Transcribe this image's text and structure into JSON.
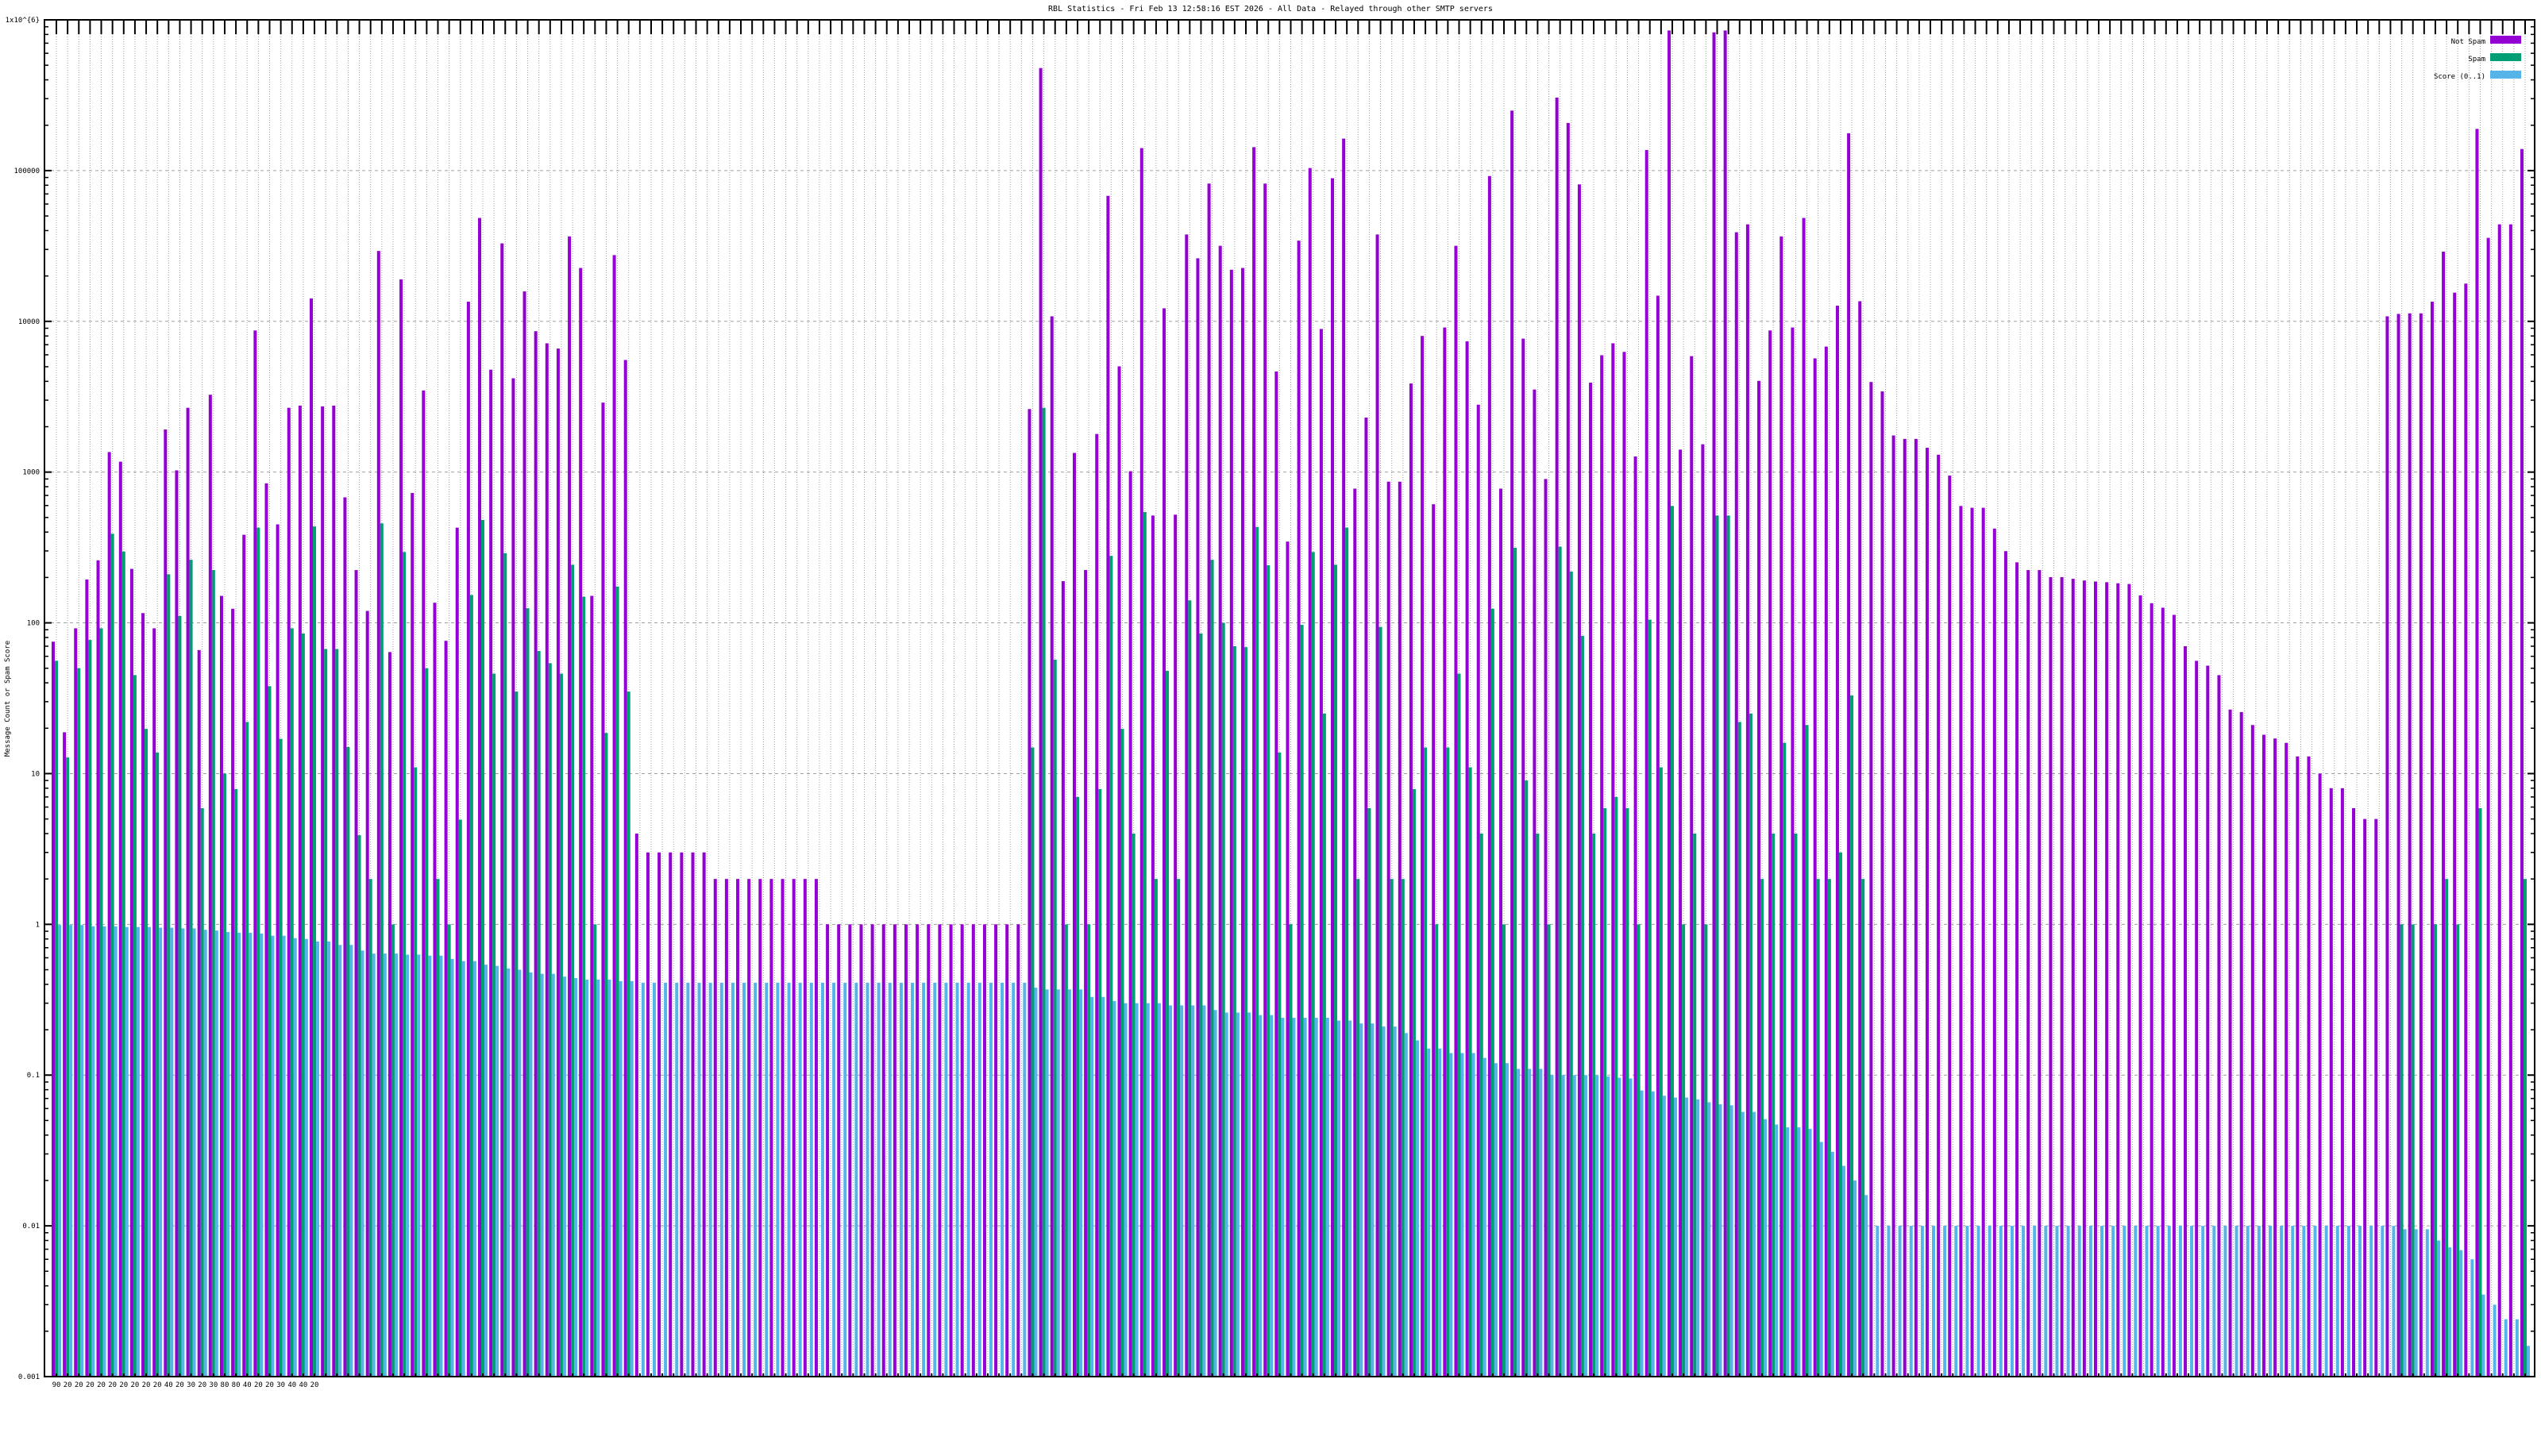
{
  "chart_data": {
    "type": "bar",
    "title": "RBL Statistics - Fri Feb 13 12:58:16 EST 2026 - All Data - Relayed through other SMTP servers",
    "xlabel": "",
    "ylabel": "Message Count or Spam Score",
    "yscale": "log",
    "ylim": [
      0.001,
      1000000
    ],
    "yticks": [
      "0.001",
      "0.01",
      "0.1",
      "1",
      "10",
      "100",
      "1000",
      "10000",
      "100000",
      "1x10^{6}"
    ],
    "ytick_values": [
      0.001,
      0.01,
      0.1,
      1,
      10,
      100,
      1000,
      10000,
      100000,
      1000000
    ],
    "grid": true,
    "legend_position": "top-right",
    "x_tick_labels_first_row": [
      "90",
      "20",
      "20",
      "20",
      "20",
      "20",
      "20",
      "20",
      "20",
      "20",
      "40",
      "20",
      "30",
      "20",
      "30",
      "80",
      "80",
      "40",
      "20",
      "20",
      "30",
      "40",
      "40",
      "20"
    ],
    "series": [
      {
        "name": "Not Spam",
        "color": "#9400d3",
        "values": [
          75,
          18.8,
          92,
          194,
          260,
          1358,
          1172,
          228,
          116,
          92,
          1917,
          1027,
          2670,
          66,
          3260,
          151,
          124,
          384,
          8700,
          842,
          450,
          2670,
          2760,
          14200,
          2730,
          2760,
          680,
          224,
          120,
          29300,
          64,
          19000,
          727,
          3480,
          136,
          76,
          428,
          13500,
          48500,
          4780,
          32900,
          4190,
          15800,
          8600,
          7150,
          6600,
          36600,
          22600,
          151,
          2890,
          27500,
          5540,
          4,
          3,
          3,
          3,
          3,
          3,
          3,
          2,
          2,
          2,
          2,
          2,
          2,
          2,
          2,
          2,
          2,
          1,
          1,
          1,
          1,
          1,
          1,
          1,
          1,
          1,
          1,
          1,
          1,
          1,
          1,
          1,
          1,
          1,
          1,
          2620,
          479000,
          10800,
          189,
          1340,
          224,
          1790,
          68000,
          5030,
          1013,
          141000,
          515,
          12200,
          522,
          37700,
          26200,
          82000,
          31700,
          22000,
          22600,
          143000,
          82000,
          4650,
          346,
          34300,
          104000,
          8900,
          89000,
          163000,
          777,
          2300,
          37700,
          864,
          864,
          3870,
          8000,
          612,
          9100,
          31700,
          7370,
          2800,
          92000,
          777,
          250000,
          7680,
          3530,
          900,
          305000,
          207000,
          81000,
          3920,
          5960,
          7150,
          6270,
          1270,
          137000,
          14800,
          850000,
          1410,
          5880,
          1530,
          826000,
          850000,
          39000,
          44000,
          4030,
          8700,
          36600,
          9100,
          48500,
          5680,
          6800,
          12700,
          177000,
          13600,
          3960,
          3430,
          1750,
          1660,
          1660,
          1450,
          1304,
          948,
          596,
          580,
          580,
          422,
          299,
          252,
          224,
          224,
          201,
          201,
          196,
          191,
          188,
          186,
          183,
          181,
          152,
          135,
          126,
          113,
          70,
          56,
          52,
          45,
          26.6,
          25.6,
          21,
          18.1,
          17.1,
          16,
          13,
          13,
          10,
          8,
          8,
          5.9,
          5,
          5,
          10800,
          11200,
          11300,
          11300,
          13500,
          29000,
          15500,
          17800,
          189000,
          35800,
          44000,
          44000,
          139000
        ]
      },
      {
        "name": "Spam",
        "color": "#009e73",
        "values": [
          56,
          12.8,
          50,
          77,
          92,
          390,
          297,
          45,
          19.8,
          13.8,
          210,
          111,
          262,
          5.9,
          224,
          10,
          7.9,
          22,
          428,
          38,
          17,
          92,
          85,
          436,
          67,
          67,
          15,
          3.9,
          2,
          457,
          1,
          295,
          11,
          50,
          2,
          1,
          4.95,
          153,
          481,
          46,
          290,
          35,
          125,
          65,
          54,
          46,
          243,
          149,
          1,
          18.6,
          174,
          35,
          0,
          0,
          0,
          0,
          0,
          0,
          0,
          0,
          0,
          0,
          0,
          0,
          0,
          0,
          0,
          0,
          0,
          0,
          0,
          0,
          0,
          0,
          0,
          0,
          0,
          0,
          0,
          0,
          0,
          0,
          0,
          0,
          0,
          0,
          0,
          14.9,
          2670,
          57,
          1,
          7,
          1,
          7.9,
          278,
          19.8,
          4,
          543,
          2,
          48,
          2,
          141,
          85,
          262,
          100,
          70,
          69,
          433,
          241,
          13.8,
          1,
          97,
          295,
          25,
          243,
          428,
          2,
          5.9,
          94,
          2,
          2,
          7.9,
          14.9,
          1,
          14.9,
          46,
          11,
          4,
          124,
          1,
          315,
          9,
          4,
          1,
          320,
          219,
          82,
          4,
          5.9,
          7,
          5.9,
          1,
          105,
          11,
          596,
          1,
          4,
          1,
          515,
          515,
          22,
          25,
          2,
          4,
          16,
          4,
          21,
          2,
          2,
          3,
          33,
          2,
          0,
          0,
          0,
          0,
          0,
          0,
          0,
          0,
          0,
          0,
          0,
          0,
          0,
          0,
          0,
          0,
          0,
          0,
          0,
          0,
          0,
          0,
          0,
          0,
          0,
          0,
          0,
          0,
          0,
          0,
          0,
          0,
          0,
          0,
          0,
          0,
          0,
          0,
          0,
          0,
          0,
          0,
          0,
          0,
          0,
          0,
          0,
          1,
          1,
          0,
          1,
          2,
          1,
          0,
          5.9,
          0,
          0,
          0,
          2
        ]
      },
      {
        "name": "Score (0..1)",
        "color": "#56b4e9",
        "values": [
          0.99,
          0.99,
          0.99,
          0.97,
          0.97,
          0.97,
          0.96,
          0.96,
          0.96,
          0.95,
          0.95,
          0.94,
          0.94,
          0.92,
          0.91,
          0.89,
          0.88,
          0.88,
          0.87,
          0.84,
          0.84,
          0.81,
          0.8,
          0.77,
          0.77,
          0.73,
          0.73,
          0.67,
          0.64,
          0.64,
          0.64,
          0.63,
          0.63,
          0.62,
          0.62,
          0.59,
          0.57,
          0.57,
          0.54,
          0.53,
          0.51,
          0.5,
          0.48,
          0.47,
          0.47,
          0.45,
          0.44,
          0.43,
          0.43,
          0.43,
          0.42,
          0.42,
          0.41,
          0.41,
          0.41,
          0.41,
          0.41,
          0.41,
          0.41,
          0.41,
          0.41,
          0.41,
          0.41,
          0.41,
          0.41,
          0.41,
          0.41,
          0.41,
          0.41,
          0.41,
          0.41,
          0.41,
          0.41,
          0.41,
          0.41,
          0.41,
          0.41,
          0.41,
          0.41,
          0.41,
          0.41,
          0.41,
          0.41,
          0.41,
          0.41,
          0.41,
          0.41,
          0.38,
          0.37,
          0.37,
          0.37,
          0.37,
          0.33,
          0.33,
          0.31,
          0.3,
          0.3,
          0.3,
          0.3,
          0.29,
          0.29,
          0.29,
          0.29,
          0.27,
          0.26,
          0.26,
          0.26,
          0.25,
          0.25,
          0.24,
          0.24,
          0.24,
          0.24,
          0.24,
          0.23,
          0.23,
          0.22,
          0.22,
          0.21,
          0.21,
          0.19,
          0.17,
          0.15,
          0.15,
          0.14,
          0.14,
          0.14,
          0.13,
          0.12,
          0.12,
          0.11,
          0.11,
          0.11,
          0.1,
          0.1,
          0.1,
          0.1,
          0.1,
          0.098,
          0.096,
          0.095,
          0.079,
          0.078,
          0.073,
          0.071,
          0.071,
          0.069,
          0.066,
          0.064,
          0.063,
          0.057,
          0.057,
          0.051,
          0.047,
          0.045,
          0.045,
          0.044,
          0.036,
          0.031,
          0.025,
          0.02,
          0.016,
          0.01,
          0.01,
          0.01,
          0.01,
          0.01,
          0.01,
          0.01,
          0.01,
          0.01,
          0.01,
          0.01,
          0.01,
          0.01,
          0.01,
          0.01,
          0.01,
          0.01,
          0.01,
          0.01,
          0.01,
          0.01,
          0.01,
          0.01,
          0.01,
          0.01,
          0.01,
          0.01,
          0.01,
          0.01,
          0.01,
          0.01,
          0.01,
          0.01,
          0.01,
          0.01,
          0.01,
          0.01,
          0.01,
          0.01,
          0.01,
          0.01,
          0.01,
          0.01,
          0.01,
          0.01,
          0.01,
          0.01,
          0.0095,
          0.0095,
          0.0095,
          0.008,
          0.0072,
          0.0069,
          0.006,
          0.0035,
          0.003,
          0.0024,
          0.0024,
          0.0016
        ]
      }
    ]
  }
}
